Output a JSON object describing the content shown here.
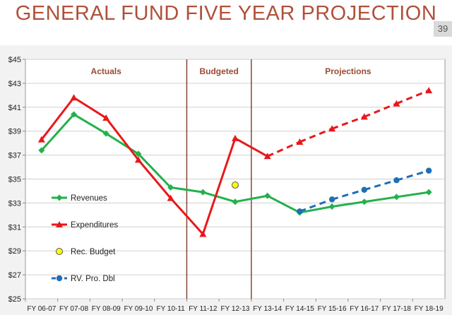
{
  "slide": {
    "title": "GENERAL FUND FIVE YEAR PROJECTION",
    "page_number": "39"
  },
  "chart_data": {
    "type": "line",
    "title": "",
    "xlabel": "",
    "ylabel": "",
    "ylim": [
      25,
      45
    ],
    "y_ticks": [
      "$25",
      "$27",
      "$29",
      "$31",
      "$33",
      "$35",
      "$37",
      "$39",
      "$41",
      "$43",
      "$45"
    ],
    "categories": [
      "FY 06-07",
      "FY 07-08",
      "FY 08-09",
      "FY 09-10",
      "FY 10-11",
      "FY 11-12",
      "FY 12-13",
      "FY 13-14",
      "FY 14-15",
      "FY 15-16",
      "FY 16-17",
      "FY 17-18",
      "FY 18-19"
    ],
    "grid": "horizontal",
    "sections": [
      {
        "label": "Actuals",
        "from": "FY 06-07",
        "to": "FY 10-11"
      },
      {
        "label": "Budgeted",
        "from": "FY 11-12",
        "to": "FY 12-13"
      },
      {
        "label": "Projections",
        "from": "FY 13-14",
        "to": "FY 18-19"
      }
    ],
    "legend_position": "left",
    "series": [
      {
        "name": "Revenues",
        "color": "#22b14c",
        "marker": "diamond",
        "values": [
          37.4,
          40.4,
          38.8,
          37.1,
          34.3,
          33.9,
          33.1,
          33.6,
          32.2,
          32.7,
          33.1,
          33.5,
          33.9
        ]
      },
      {
        "name": "Expenditures",
        "color": "#e8181a",
        "marker": "triangle",
        "dashed_from": "FY 13-14",
        "values": [
          38.3,
          41.8,
          40.1,
          36.6,
          33.4,
          30.4,
          38.4,
          36.9,
          38.1,
          39.2,
          40.2,
          41.3,
          42.4
        ]
      },
      {
        "name": "Rec. Budget",
        "color": "#ffff00",
        "marker": "circle",
        "values": [
          null,
          null,
          null,
          null,
          null,
          null,
          34.5,
          null,
          null,
          null,
          null,
          null,
          null
        ]
      },
      {
        "name": "RV. Pro. Dbl",
        "color": "#1f6fb4",
        "marker": "circle",
        "dashed": true,
        "values": [
          null,
          null,
          null,
          null,
          null,
          null,
          null,
          null,
          32.3,
          33.3,
          34.1,
          34.9,
          35.7
        ]
      }
    ]
  }
}
